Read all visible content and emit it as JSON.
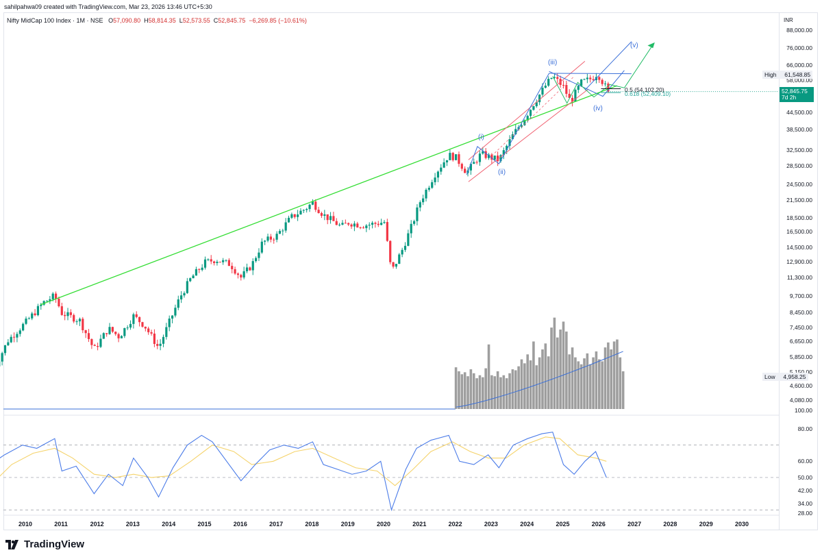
{
  "header": {
    "credit": "sahilpahwa09 created with TradingView.com, Mar 23, 2026 13:46 UTC+5:30",
    "symbol": "Nifty MidCap 100 Index · 1M · NSE",
    "open_label": "O",
    "open": "57,090.80",
    "high_label": "H",
    "high": "58,814.35",
    "low_label": "L",
    "low": "52,573.55",
    "close_label": "C",
    "close": "52,845.75",
    "change": "−6,269.85 (−10.61%)"
  },
  "axis": {
    "currency": "INR",
    "price_ticks": [
      "88,000.00",
      "76,000.00",
      "66,000.00",
      "58,000.00",
      "44,500.00",
      "38,500.00",
      "32,500.00",
      "28,500.00",
      "24,500.00",
      "21,500.00",
      "18,500.00",
      "16,500.00",
      "14,500.00",
      "12,900.00",
      "11,300.00",
      "9,700.00",
      "8,450.00",
      "7,450.00",
      "6,650.00",
      "5,850.00",
      "5,150.00",
      "4,600.00",
      "4,080.00",
      "100.00"
    ],
    "rsi_ticks": [
      "80.00",
      "60.00",
      "50.00",
      "42.00",
      "34.00",
      "28.00"
    ],
    "years": [
      "2010",
      "2011",
      "2012",
      "2013",
      "2014",
      "2015",
      "2016",
      "2017",
      "2018",
      "2019",
      "2020",
      "2021",
      "2022",
      "2023",
      "2024",
      "2025",
      "2026",
      "2027",
      "2028",
      "2029",
      "2030"
    ]
  },
  "markers": {
    "high_label": "High",
    "high_value": "61,548.85",
    "low_label": "Low",
    "low_value": "4,958.25",
    "current_price": "52,845.75",
    "countdown": "7d 2h"
  },
  "annotations": {
    "wave_i": "(i)",
    "wave_ii": "(ii)",
    "wave_iii": "(iii)",
    "wave_iv": "(iv)",
    "wave_v": "(v)",
    "fib_05": "0.5 (54,102.20)",
    "fib_0618": "0.618 (52,409.10)"
  },
  "brand": {
    "logo_text": "TradingView"
  },
  "colors": {
    "up": "#089981",
    "down": "#f23645",
    "trendline": "#33dd33",
    "channel_red": "#f06070",
    "blue": "#3a6fd8",
    "rsi": "#4a7be8",
    "rsi_ma": "#f5d36b",
    "volume": "#9e9e9e"
  },
  "chart_data": {
    "type": "candlestick",
    "title": "Nifty MidCap 100 Index · 1M · NSE",
    "scale": "log",
    "xlabel": "Year",
    "ylabel": "INR",
    "x_range": [
      2009,
      2030
    ],
    "y_range": [
      4080,
      88000
    ],
    "price_path": [
      [
        2009.0,
        4960
      ],
      [
        2009.5,
        6700
      ],
      [
        2010.0,
        7800
      ],
      [
        2010.5,
        9200
      ],
      [
        2010.8,
        9700
      ],
      [
        2011.0,
        8400
      ],
      [
        2011.5,
        7900
      ],
      [
        2011.9,
        6200
      ],
      [
        2012.3,
        7400
      ],
      [
        2012.6,
        6900
      ],
      [
        2013.0,
        8200
      ],
      [
        2013.3,
        7600
      ],
      [
        2013.7,
        6300
      ],
      [
        2014.0,
        7800
      ],
      [
        2014.3,
        9600
      ],
      [
        2014.6,
        11200
      ],
      [
        2015.0,
        12800
      ],
      [
        2015.3,
        13100
      ],
      [
        2015.7,
        12600
      ],
      [
        2016.0,
        11300
      ],
      [
        2016.3,
        12500
      ],
      [
        2016.6,
        15100
      ],
      [
        2017.0,
        16000
      ],
      [
        2017.4,
        18600
      ],
      [
        2017.8,
        20000
      ],
      [
        2018.0,
        21000
      ],
      [
        2018.3,
        19000
      ],
      [
        2018.8,
        17200
      ],
      [
        2019.0,
        17800
      ],
      [
        2019.4,
        17400
      ],
      [
        2019.8,
        17700
      ],
      [
        2020.0,
        17900
      ],
      [
        2020.2,
        11800
      ],
      [
        2020.5,
        14200
      ],
      [
        2020.8,
        17800
      ],
      [
        2021.0,
        21200
      ],
      [
        2021.4,
        26500
      ],
      [
        2021.8,
        31200
      ],
      [
        2022.0,
        30500
      ],
      [
        2022.3,
        27000
      ],
      [
        2022.7,
        31500
      ],
      [
        2023.0,
        30500
      ],
      [
        2023.2,
        29900
      ],
      [
        2023.6,
        37000
      ],
      [
        2023.9,
        42000
      ],
      [
        2024.2,
        48500
      ],
      [
        2024.5,
        55500
      ],
      [
        2024.7,
        60000
      ],
      [
        2025.0,
        55000
      ],
      [
        2025.2,
        48500
      ],
      [
        2025.5,
        57000
      ],
      [
        2025.8,
        59000
      ],
      [
        2025.95,
        61548.85
      ],
      [
        2026.1,
        57090.8
      ],
      [
        2026.25,
        52845.75
      ]
    ],
    "trendline_support": [
      [
        2010.4,
        9000
      ],
      [
        2017.9,
        20600
      ],
      [
        2022.6,
        33500
      ],
      [
        2026.5,
        55500
      ]
    ],
    "wave_labels": [
      {
        "label": "(i)",
        "x": 2022.6,
        "price": 36500
      },
      {
        "label": "(ii)",
        "x": 2023.25,
        "price": 26500
      },
      {
        "label": "(iii)",
        "x": 2024.6,
        "price": 66500
      },
      {
        "label": "(iv)",
        "x": 2025.95,
        "price": 46500
      },
      {
        "label": "(v)",
        "x": 2026.95,
        "price": 80000
      }
    ],
    "fib_levels": [
      {
        "label": "0.5",
        "price": 54102.2
      },
      {
        "label": "0.618",
        "price": 52409.1
      }
    ],
    "volume": {
      "start": 2022.0,
      "heights": [
        0.42,
        0.38,
        0.35,
        0.37,
        0.33,
        0.4,
        0.36,
        0.31,
        0.34,
        0.32,
        0.41,
        0.65,
        0.34,
        0.33,
        0.38,
        0.32,
        0.34,
        0.31,
        0.36,
        0.4,
        0.39,
        0.43,
        0.5,
        0.46,
        0.55,
        0.49,
        0.68,
        0.44,
        0.52,
        0.6,
        0.66,
        0.53,
        0.82,
        0.92,
        0.72,
        0.8,
        0.88,
        0.78,
        0.55,
        0.62,
        0.52,
        0.48,
        0.45,
        0.51,
        0.56,
        0.45,
        0.52,
        0.58,
        0.5,
        0.48,
        0.62,
        0.67,
        0.6,
        0.68,
        0.7,
        0.52,
        0.38
      ],
      "ma_from": 0.02,
      "ma_to": 0.58
    },
    "rsi": {
      "levels": [
        70,
        50,
        30
      ],
      "ticks": [
        80,
        60,
        50,
        42,
        34,
        28
      ],
      "points": [
        [
          2009,
          58
        ],
        [
          2009.4,
          64
        ],
        [
          2009.9,
          70
        ],
        [
          2010.3,
          68
        ],
        [
          2010.8,
          74
        ],
        [
          2011.0,
          54
        ],
        [
          2011.4,
          57
        ],
        [
          2011.9,
          40
        ],
        [
          2012.3,
          52
        ],
        [
          2012.7,
          45
        ],
        [
          2013.0,
          62
        ],
        [
          2013.4,
          50
        ],
        [
          2013.7,
          38
        ],
        [
          2014.1,
          56
        ],
        [
          2014.5,
          70
        ],
        [
          2014.9,
          76
        ],
        [
          2015.2,
          72
        ],
        [
          2015.6,
          60
        ],
        [
          2016.0,
          48
        ],
        [
          2016.4,
          58
        ],
        [
          2016.8,
          67
        ],
        [
          2017.2,
          70
        ],
        [
          2017.6,
          68
        ],
        [
          2018.0,
          72
        ],
        [
          2018.3,
          58
        ],
        [
          2018.7,
          55
        ],
        [
          2019.1,
          52
        ],
        [
          2019.5,
          54
        ],
        [
          2019.9,
          60
        ],
        [
          2020.2,
          30
        ],
        [
          2020.6,
          55
        ],
        [
          2020.9,
          68
        ],
        [
          2021.3,
          73
        ],
        [
          2021.8,
          76
        ],
        [
          2022.1,
          60
        ],
        [
          2022.5,
          58
        ],
        [
          2022.9,
          64
        ],
        [
          2023.2,
          56
        ],
        [
          2023.6,
          70
        ],
        [
          2024.0,
          74
        ],
        [
          2024.4,
          77
        ],
        [
          2024.7,
          78
        ],
        [
          2025.0,
          58
        ],
        [
          2025.3,
          52
        ],
        [
          2025.6,
          60
        ],
        [
          2025.9,
          66
        ],
        [
          2026.2,
          50
        ]
      ],
      "ma_points": [
        [
          2009,
          45
        ],
        [
          2009.6,
          58
        ],
        [
          2010.2,
          65
        ],
        [
          2010.8,
          68
        ],
        [
          2011.3,
          62
        ],
        [
          2011.9,
          52
        ],
        [
          2012.5,
          50
        ],
        [
          2013.0,
          52
        ],
        [
          2013.5,
          50
        ],
        [
          2014.0,
          51
        ],
        [
          2014.6,
          60
        ],
        [
          2015.2,
          70
        ],
        [
          2015.8,
          66
        ],
        [
          2016.3,
          58
        ],
        [
          2016.9,
          60
        ],
        [
          2017.5,
          66
        ],
        [
          2018.0,
          68
        ],
        [
          2018.6,
          62
        ],
        [
          2019.2,
          56
        ],
        [
          2019.8,
          54
        ],
        [
          2020.3,
          45
        ],
        [
          2020.8,
          55
        ],
        [
          2021.3,
          66
        ],
        [
          2021.9,
          72
        ],
        [
          2022.4,
          66
        ],
        [
          2022.9,
          62
        ],
        [
          2023.4,
          62
        ],
        [
          2023.9,
          70
        ],
        [
          2024.5,
          75
        ],
        [
          2024.9,
          74
        ],
        [
          2025.4,
          64
        ],
        [
          2025.9,
          62
        ],
        [
          2026.2,
          60
        ]
      ]
    }
  }
}
